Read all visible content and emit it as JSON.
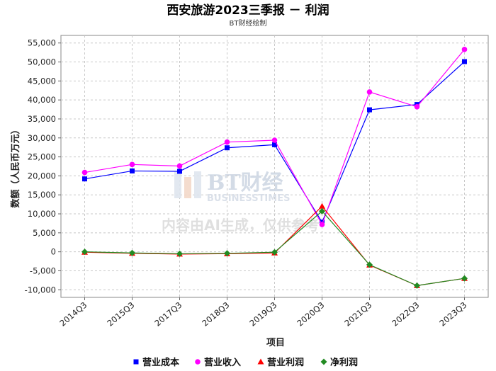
{
  "chart_data": {
    "type": "line",
    "title": "西安旅游2023三季报 － 利润",
    "subtitle": "BT财经绘制",
    "xlabel": "项目",
    "ylabel": "数额（人民币万元）",
    "ylim": [
      -12000,
      57000
    ],
    "yticks": [
      -10000,
      -5000,
      0,
      5000,
      10000,
      15000,
      20000,
      25000,
      30000,
      35000,
      40000,
      45000,
      50000,
      55000
    ],
    "ytick_labels": [
      "-10,000",
      "-5,000",
      "0",
      "5,000",
      "10,000",
      "15,000",
      "20,000",
      "25,000",
      "30,000",
      "35,000",
      "40,000",
      "45,000",
      "50,000",
      "55,000"
    ],
    "grid": true,
    "legend_position": "bottom",
    "categories": [
      "2014Q3",
      "2015Q3",
      "2017Q3",
      "2018Q3",
      "2019Q3",
      "2020Q3",
      "2021Q3",
      "2022Q3",
      "2023Q3"
    ],
    "series": [
      {
        "name": "营业成本",
        "color": "#0000ff",
        "marker": "square",
        "values": [
          19200,
          21300,
          21200,
          27400,
          28200,
          7800,
          37400,
          38800,
          50100
        ]
      },
      {
        "name": "营业收入",
        "color": "#ff00ff",
        "marker": "circle",
        "values": [
          20900,
          23000,
          22600,
          28900,
          29400,
          7200,
          42100,
          38200,
          53300
        ]
      },
      {
        "name": "营业利润",
        "color": "#ff0000",
        "marker": "triangle",
        "values": [
          -100,
          -400,
          -600,
          -500,
          -300,
          12000,
          -3500,
          -8900,
          -7000
        ]
      },
      {
        "name": "净利润",
        "color": "#228b22",
        "marker": "diamond",
        "values": [
          0,
          -300,
          -500,
          -400,
          -100,
          10700,
          -3400,
          -8900,
          -7000
        ]
      }
    ]
  },
  "watermark": {
    "logo_text": "BT财经",
    "logo_sub": "BUSINESSTIMES",
    "notice": "内容由AI生成，仅供参考"
  }
}
